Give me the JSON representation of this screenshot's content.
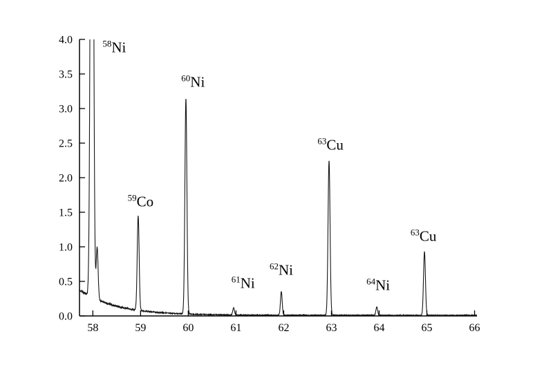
{
  "page": {
    "background_color": "#ffffff"
  },
  "chart_data": {
    "type": "line",
    "title": "",
    "subtitle": "",
    "xlabel": "",
    "ylabel": "",
    "legend": null,
    "grid": false,
    "line_color": "#141414",
    "axis_color": "#000000",
    "xlim": [
      57.72,
      66.05
    ],
    "ylim": [
      0,
      4.0
    ],
    "x_ticks": [
      "58",
      "59",
      "60",
      "61",
      "62",
      "63",
      "64",
      "65",
      "66"
    ],
    "x_tick_values": [
      58,
      59,
      60,
      61,
      62,
      63,
      64,
      65,
      66
    ],
    "y_ticks": [
      "0.0",
      "0.5",
      "1.0",
      "1.5",
      "2.0",
      "2.5",
      "3.0",
      "3.5",
      "4.0"
    ],
    "y_tick_values": [
      0,
      0.5,
      1.0,
      1.5,
      2.0,
      2.5,
      3.0,
      3.5,
      4.0
    ],
    "baseline": {
      "start_value": 0.38,
      "floor": 0.01,
      "decay_tau": 0.75,
      "noise_amplitude": 0.012
    },
    "peaks": [
      {
        "label": "58Ni",
        "center": 57.98,
        "height": 12.0,
        "sigma": 0.028
      },
      {
        "label": "58Ni-shoulder",
        "center": 58.09,
        "height": 0.75,
        "sigma": 0.02
      },
      {
        "label": "59Co",
        "center": 58.95,
        "height": 1.37,
        "sigma": 0.02
      },
      {
        "label": "60Ni",
        "center": 59.95,
        "height": 3.12,
        "sigma": 0.021
      },
      {
        "label": "61Ni",
        "center": 60.95,
        "height": 0.1,
        "sigma": 0.018
      },
      {
        "label": "62Ni",
        "center": 61.95,
        "height": 0.34,
        "sigma": 0.018
      },
      {
        "label": "63Cu",
        "center": 62.95,
        "height": 2.24,
        "sigma": 0.021
      },
      {
        "label": "64Ni",
        "center": 63.95,
        "height": 0.12,
        "sigma": 0.018
      },
      {
        "label": "63Cu (at mass 65)",
        "center": 64.95,
        "height": 0.92,
        "sigma": 0.02
      }
    ],
    "annotations": [
      {
        "sup": "58",
        "element": "Ni",
        "x": 58.45,
        "y": 3.88
      },
      {
        "sup": "59",
        "element": "Co",
        "x": 59.0,
        "y": 1.65
      },
      {
        "sup": "60",
        "element": "Ni",
        "x": 60.1,
        "y": 3.38
      },
      {
        "sup": "61",
        "element": "Ni",
        "x": 61.15,
        "y": 0.47
      },
      {
        "sup": "62",
        "element": "Ni",
        "x": 61.95,
        "y": 0.66
      },
      {
        "sup": "63",
        "element": "Cu",
        "x": 62.98,
        "y": 2.47
      },
      {
        "sup": "64",
        "element": "Ni",
        "x": 63.98,
        "y": 0.44
      },
      {
        "sup": "63",
        "element": "Cu",
        "x": 64.93,
        "y": 1.15
      }
    ]
  }
}
